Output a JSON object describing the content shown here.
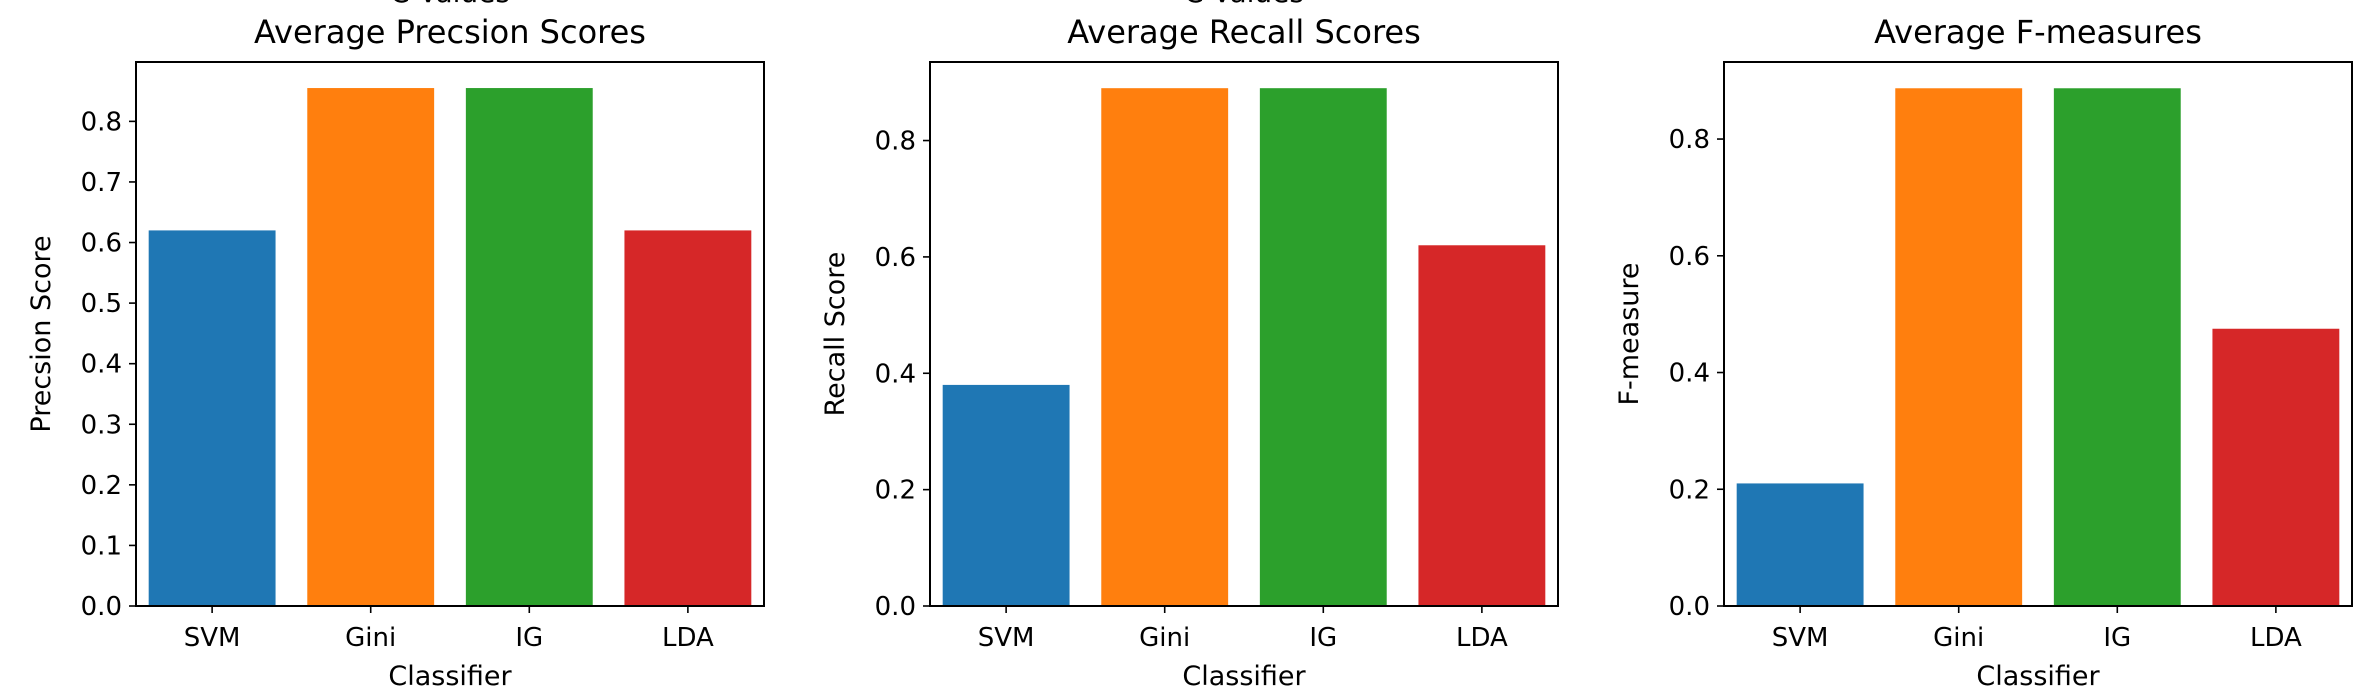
{
  "chart_data": [
    {
      "type": "bar",
      "title": "Average Precsion Scores",
      "clipped_suptitle": "C Values",
      "xlabel": "Classifier",
      "ylabel": "Precsion Score",
      "categories": [
        "SVM",
        "Gini",
        "IG",
        "LDA"
      ],
      "values": [
        0.62,
        0.855,
        0.855,
        0.62
      ],
      "colors": [
        "#1f77b4",
        "#ff7f0e",
        "#2ca02c",
        "#d62728"
      ],
      "ylim": [
        0,
        0.898
      ],
      "yticks": [
        0.0,
        0.1,
        0.2,
        0.3,
        0.4,
        0.5,
        0.6,
        0.7,
        0.8
      ],
      "ytick_labels": [
        "0.0",
        "0.1",
        "0.2",
        "0.3",
        "0.4",
        "0.5",
        "0.6",
        "0.7",
        "0.8"
      ],
      "grid": false
    },
    {
      "type": "bar",
      "title": "Average Recall Scores",
      "clipped_suptitle": "C Values",
      "xlabel": "Classifier",
      "ylabel": "Recall Score",
      "categories": [
        "SVM",
        "Gini",
        "IG",
        "LDA"
      ],
      "values": [
        0.38,
        0.89,
        0.89,
        0.62
      ],
      "colors": [
        "#1f77b4",
        "#ff7f0e",
        "#2ca02c",
        "#d62728"
      ],
      "ylim": [
        0,
        0.935
      ],
      "yticks": [
        0.0,
        0.2,
        0.4,
        0.6,
        0.8
      ],
      "ytick_labels": [
        "0.0",
        "0.2",
        "0.4",
        "0.6",
        "0.8"
      ],
      "grid": false
    },
    {
      "type": "bar",
      "title": "Average F-measures",
      "xlabel": "Classifier",
      "ylabel": "F-measure",
      "categories": [
        "SVM",
        "Gini",
        "IG",
        "LDA"
      ],
      "values": [
        0.21,
        0.887,
        0.887,
        0.475
      ],
      "colors": [
        "#1f77b4",
        "#ff7f0e",
        "#2ca02c",
        "#d62728"
      ],
      "ylim": [
        0,
        0.932
      ],
      "yticks": [
        0.0,
        0.2,
        0.4,
        0.6,
        0.8
      ],
      "ytick_labels": [
        "0.0",
        "0.2",
        "0.4",
        "0.6",
        "0.8"
      ],
      "grid": false
    }
  ]
}
